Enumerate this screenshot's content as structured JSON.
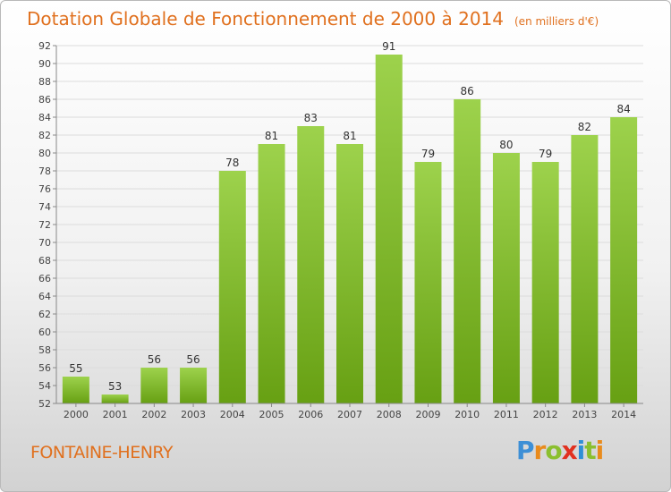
{
  "chart_data": {
    "type": "bar",
    "title": "Dotation Globale de Fonctionnement de 2000 à 2014",
    "subtitle": "(en milliers d'€)",
    "categories": [
      "2000",
      "2001",
      "2002",
      "2003",
      "2004",
      "2005",
      "2006",
      "2007",
      "2008",
      "2009",
      "2010",
      "2011",
      "2012",
      "2013",
      "2014"
    ],
    "values": [
      55,
      53,
      56,
      56,
      78,
      81,
      83,
      81,
      91,
      79,
      86,
      80,
      79,
      82,
      84
    ],
    "ylim": [
      52,
      92
    ],
    "yticks": [
      52,
      54,
      56,
      58,
      60,
      62,
      64,
      66,
      68,
      70,
      72,
      74,
      76,
      78,
      80,
      82,
      84,
      86,
      88,
      90,
      92
    ],
    "grid": true,
    "colors": {
      "bar_light": "#9dd24c",
      "bar_dark": "#67a013",
      "title": "#e0701e"
    }
  },
  "commune": "FONTAINE-HENRY",
  "logo": {
    "letters": [
      "P",
      "r",
      "o",
      "x",
      "i",
      "t",
      "i"
    ],
    "colors": [
      "#3d8fd6",
      "#e98b1c",
      "#8bbf2f",
      "#e1311f",
      "#2f8fd6",
      "#8bbf2f",
      "#e98b1c"
    ]
  }
}
